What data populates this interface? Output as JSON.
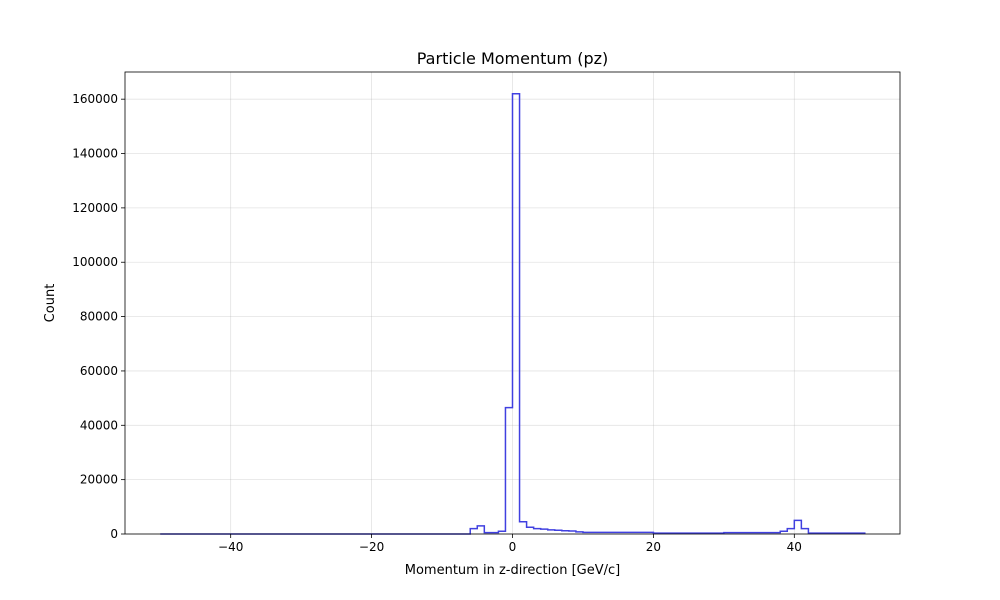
{
  "chart_data": {
    "type": "histogram",
    "title": "Particle Momentum (pz)",
    "xlabel": "Momentum in z-direction [GeV/c]",
    "ylabel": "Count",
    "xlim": [
      -55.0,
      55.0
    ],
    "ylim": [
      0,
      170000
    ],
    "xticks": [
      -40,
      -20,
      0,
      20,
      40
    ],
    "yticks": [
      0,
      20000,
      40000,
      60000,
      80000,
      100000,
      120000,
      140000,
      160000
    ],
    "grid": true,
    "style": "step",
    "line_color": "#4040e0",
    "bin_range": [
      -50,
      50
    ],
    "bin_width": 1,
    "values": [
      0,
      0,
      0,
      0,
      0,
      0,
      0,
      0,
      0,
      0,
      0,
      0,
      0,
      0,
      0,
      0,
      0,
      0,
      0,
      0,
      0,
      0,
      0,
      0,
      0,
      0,
      0,
      0,
      0,
      0,
      0,
      0,
      0,
      0,
      0,
      0,
      0,
      0,
      0,
      0,
      0,
      0,
      0,
      0,
      2000,
      3000,
      500,
      500,
      1000,
      46500,
      162000,
      4500,
      2500,
      2000,
      1800,
      1500,
      1400,
      1200,
      1100,
      800,
      600,
      600,
      600,
      600,
      600,
      600,
      600,
      600,
      600,
      600,
      300,
      300,
      300,
      300,
      300,
      300,
      300,
      300,
      300,
      300,
      500,
      500,
      500,
      500,
      500,
      500,
      500,
      500,
      1000,
      2000,
      5000,
      2000,
      300,
      300,
      300,
      300,
      300,
      300,
      300,
      300
    ]
  }
}
